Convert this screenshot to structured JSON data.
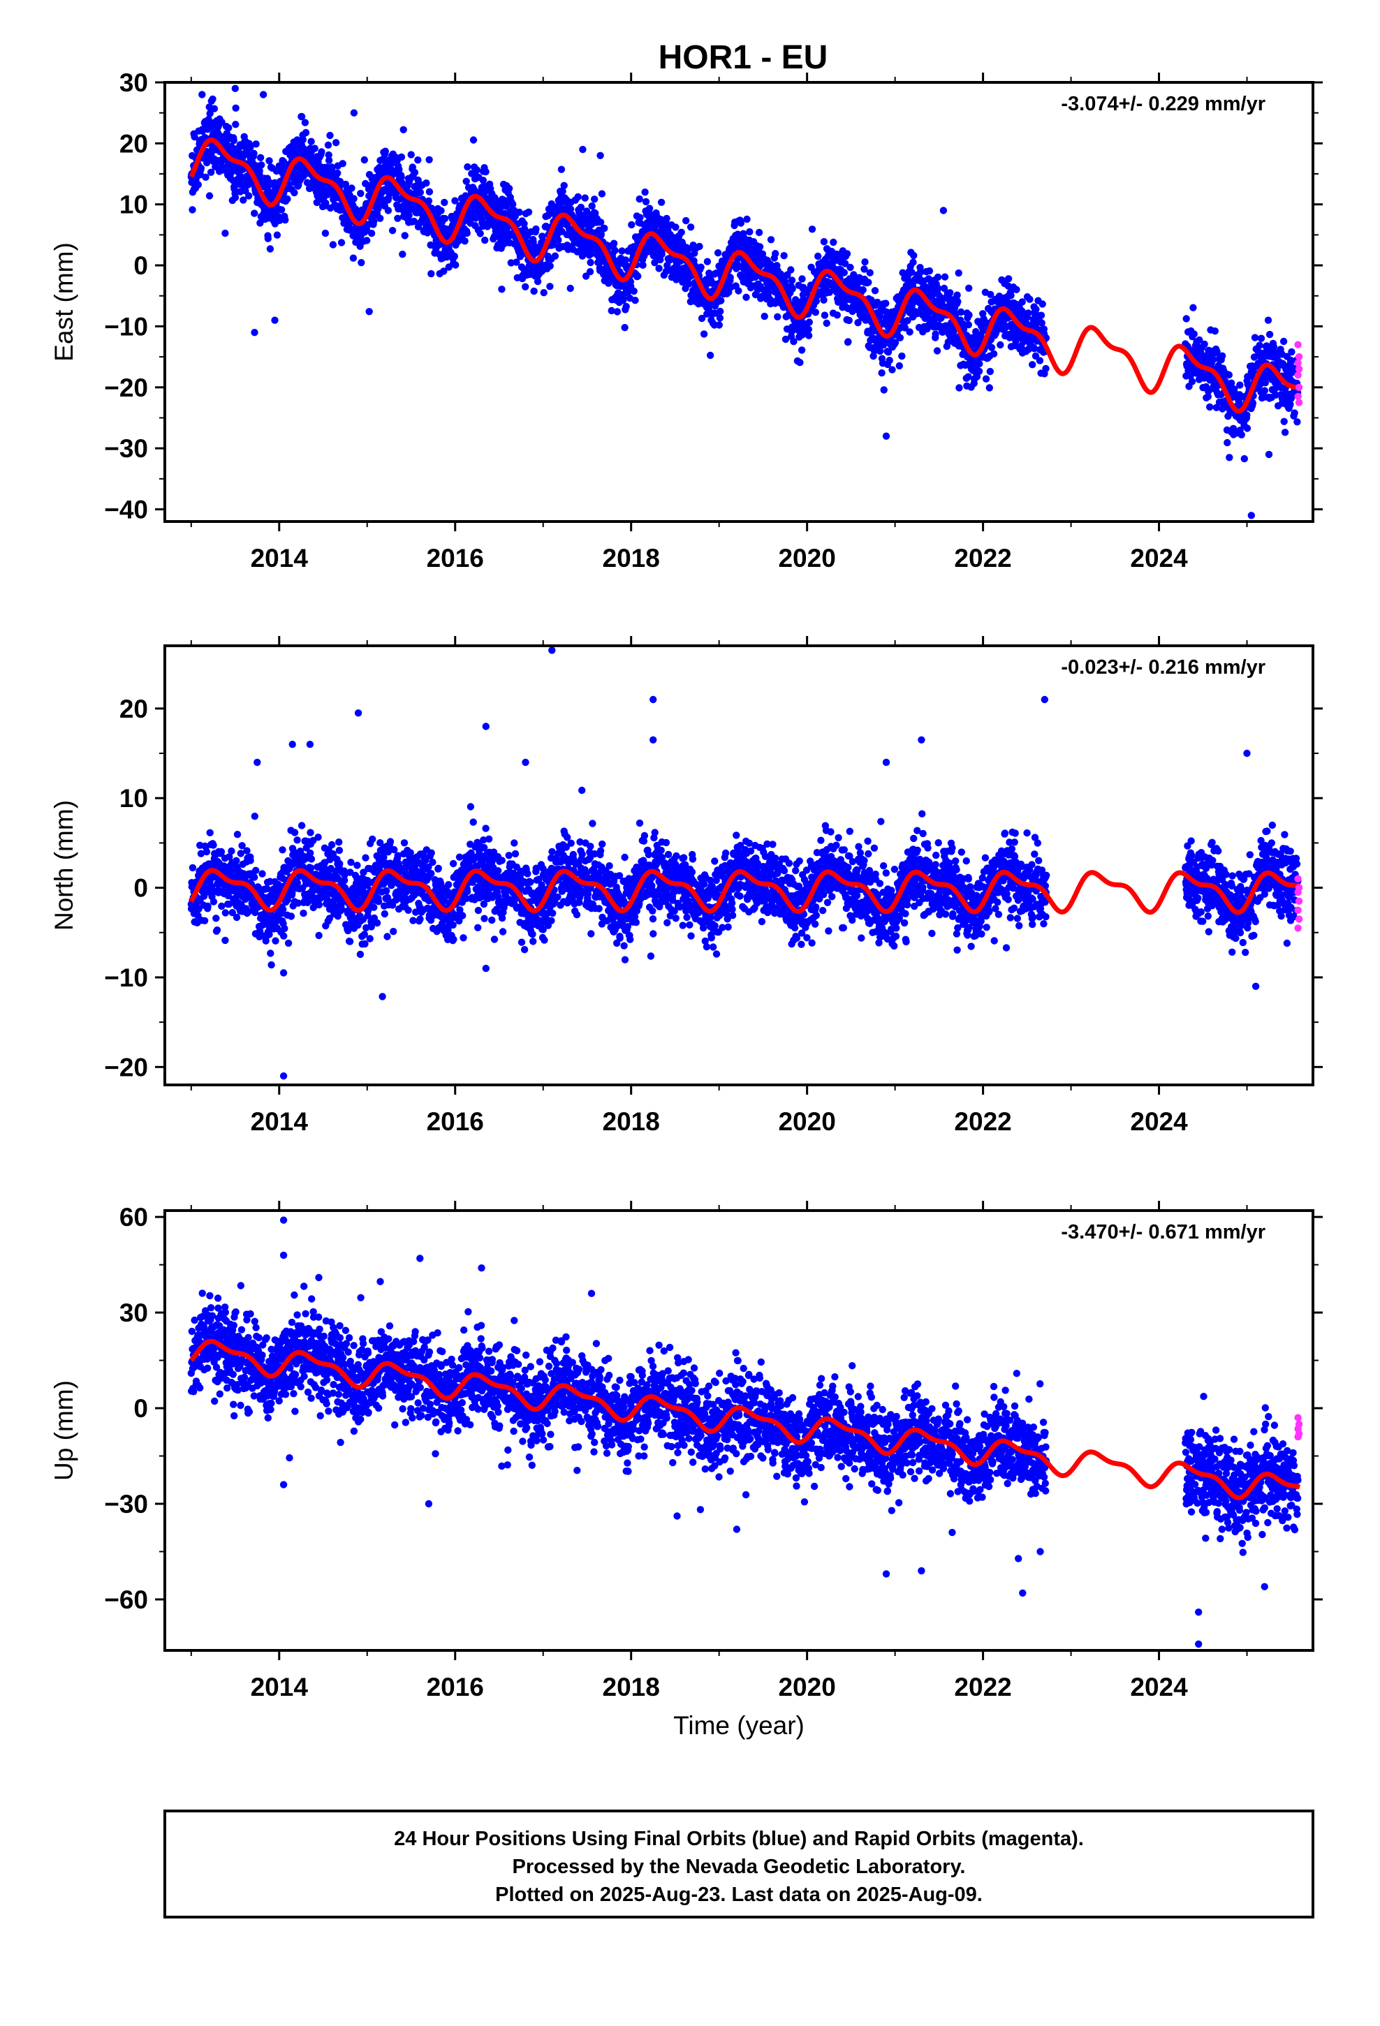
{
  "title": "HOR1 - EU",
  "footer": {
    "lines": [
      "24 Hour Positions Using Final Orbits (blue) and Rapid Orbits (magenta).",
      "Processed by the Nevada Geodetic Laboratory.",
      "Plotted on 2025-Aug-23. Last data on 2025-Aug-09."
    ]
  },
  "colors": {
    "final": "#0000ff",
    "rapid": "#ff33ff",
    "model": "#ff0000",
    "frame": "#000000"
  },
  "chart_data": [
    {
      "type": "scatter",
      "ylabel": "East (mm)",
      "xlabel": "",
      "rate_text": "-3.074+/- 0.229 mm/yr",
      "xlim": [
        2012.7,
        2025.75
      ],
      "ylim": [
        -42,
        30
      ],
      "yticks": [
        30,
        20,
        10,
        0,
        -10,
        -20,
        -30,
        -40
      ],
      "xticks": [
        2014,
        2016,
        2018,
        2020,
        2022,
        2024
      ],
      "grid": false,
      "series": [
        {
          "role": "final",
          "segments": [
            [
              2013.0,
              2022.72
            ],
            [
              2024.3,
              2025.58
            ]
          ],
          "trend": {
            "t0": 2013.0,
            "v0": 17.5,
            "rate": -3.074
          },
          "annual_amplitude": 3.5,
          "scatter_sd": 2.6,
          "outliers": [
            [
              2013.5,
              29
            ],
            [
              2013.82,
              28
            ],
            [
              2013.72,
              -11
            ],
            [
              2013.95,
              -9
            ],
            [
              2014.85,
              25
            ],
            [
              2017.45,
              19
            ],
            [
              2017.65,
              18
            ],
            [
              2021.55,
              9
            ],
            [
              2020.9,
              -28
            ],
            [
              2025.05,
              -41
            ],
            [
              2024.8,
              -31.5
            ],
            [
              2025.25,
              -31
            ]
          ]
        },
        {
          "role": "rapid",
          "segments": [
            [
              2025.58,
              2025.61
            ]
          ],
          "values": [
            -13,
            -15,
            -16,
            -17,
            -18,
            -20,
            -21.5,
            -22.5
          ]
        },
        {
          "role": "model",
          "type": "line",
          "note": "linear trend plus annual and semiannual terms with offsets"
        }
      ]
    },
    {
      "type": "scatter",
      "ylabel": "North (mm)",
      "xlabel": "",
      "rate_text": "-0.023+/- 0.216 mm/yr",
      "xlim": [
        2012.7,
        2025.75
      ],
      "ylim": [
        -22,
        27
      ],
      "yticks": [
        20,
        10,
        0,
        -10,
        -20
      ],
      "xticks": [
        2014,
        2016,
        2018,
        2020,
        2022,
        2024
      ],
      "grid": false,
      "series": [
        {
          "role": "final",
          "segments": [
            [
              2013.0,
              2022.72
            ],
            [
              2024.3,
              2025.58
            ]
          ],
          "trend": {
            "t0": 2013.0,
            "v0": 0.0,
            "rate": -0.023
          },
          "annual_amplitude": 1.8,
          "scatter_sd": 2.0,
          "outliers": [
            [
              2017.1,
              26.5
            ],
            [
              2018.25,
              21
            ],
            [
              2022.7,
              21
            ],
            [
              2014.9,
              19.5
            ],
            [
              2016.35,
              18
            ],
            [
              2013.75,
              14
            ],
            [
              2014.15,
              16
            ],
            [
              2014.35,
              16
            ],
            [
              2016.8,
              14
            ],
            [
              2018.25,
              16.5
            ],
            [
              2020.9,
              14
            ],
            [
              2021.3,
              16.5
            ],
            [
              2025.0,
              15
            ],
            [
              2014.05,
              -21
            ],
            [
              2014.05,
              -9.5
            ],
            [
              2016.35,
              -9
            ],
            [
              2025.1,
              -11
            ]
          ]
        },
        {
          "role": "rapid",
          "segments": [
            [
              2025.58,
              2025.61
            ]
          ],
          "values": [
            1,
            0,
            -0.5,
            -1.5,
            -2.5,
            -3.5,
            -4.5
          ]
        },
        {
          "role": "model",
          "type": "line",
          "note": "linear trend plus annual and semiannual terms"
        }
      ]
    },
    {
      "type": "scatter",
      "ylabel": "Up (mm)",
      "xlabel": "Time (year)",
      "rate_text": "-3.470+/- 0.671 mm/yr",
      "xlim": [
        2012.7,
        2025.75
      ],
      "ylim": [
        -76,
        62
      ],
      "yticks": [
        60,
        30,
        0,
        -30,
        -60
      ],
      "xticks": [
        2014,
        2016,
        2018,
        2020,
        2022,
        2024
      ],
      "grid": false,
      "series": [
        {
          "role": "final",
          "segments": [
            [
              2013.0,
              2022.72
            ],
            [
              2024.3,
              2025.58
            ]
          ],
          "trend": {
            "t0": 2013.0,
            "v0": 18.0,
            "rate": -3.47
          },
          "annual_amplitude": 3.5,
          "scatter_sd": 6.5,
          "outliers": [
            [
              2014.05,
              59
            ],
            [
              2014.05,
              48
            ],
            [
              2015.6,
              47
            ],
            [
              2016.3,
              44
            ],
            [
              2014.45,
              41
            ],
            [
              2017.55,
              36
            ],
            [
              2014.05,
              -24
            ],
            [
              2015.7,
              -30
            ],
            [
              2020.9,
              -52
            ],
            [
              2021.3,
              -51
            ],
            [
              2022.45,
              -58
            ],
            [
              2024.45,
              -74
            ],
            [
              2024.45,
              -64
            ],
            [
              2025.2,
              -56
            ],
            [
              2019.2,
              -38
            ],
            [
              2022.65,
              -45
            ]
          ]
        },
        {
          "role": "rapid",
          "segments": [
            [
              2025.58,
              2025.61
            ]
          ],
          "values": [
            -3,
            -5,
            -6.5,
            -8,
            -9
          ]
        },
        {
          "role": "model",
          "type": "line",
          "note": "linear trend plus annual and semiannual terms"
        }
      ]
    }
  ]
}
